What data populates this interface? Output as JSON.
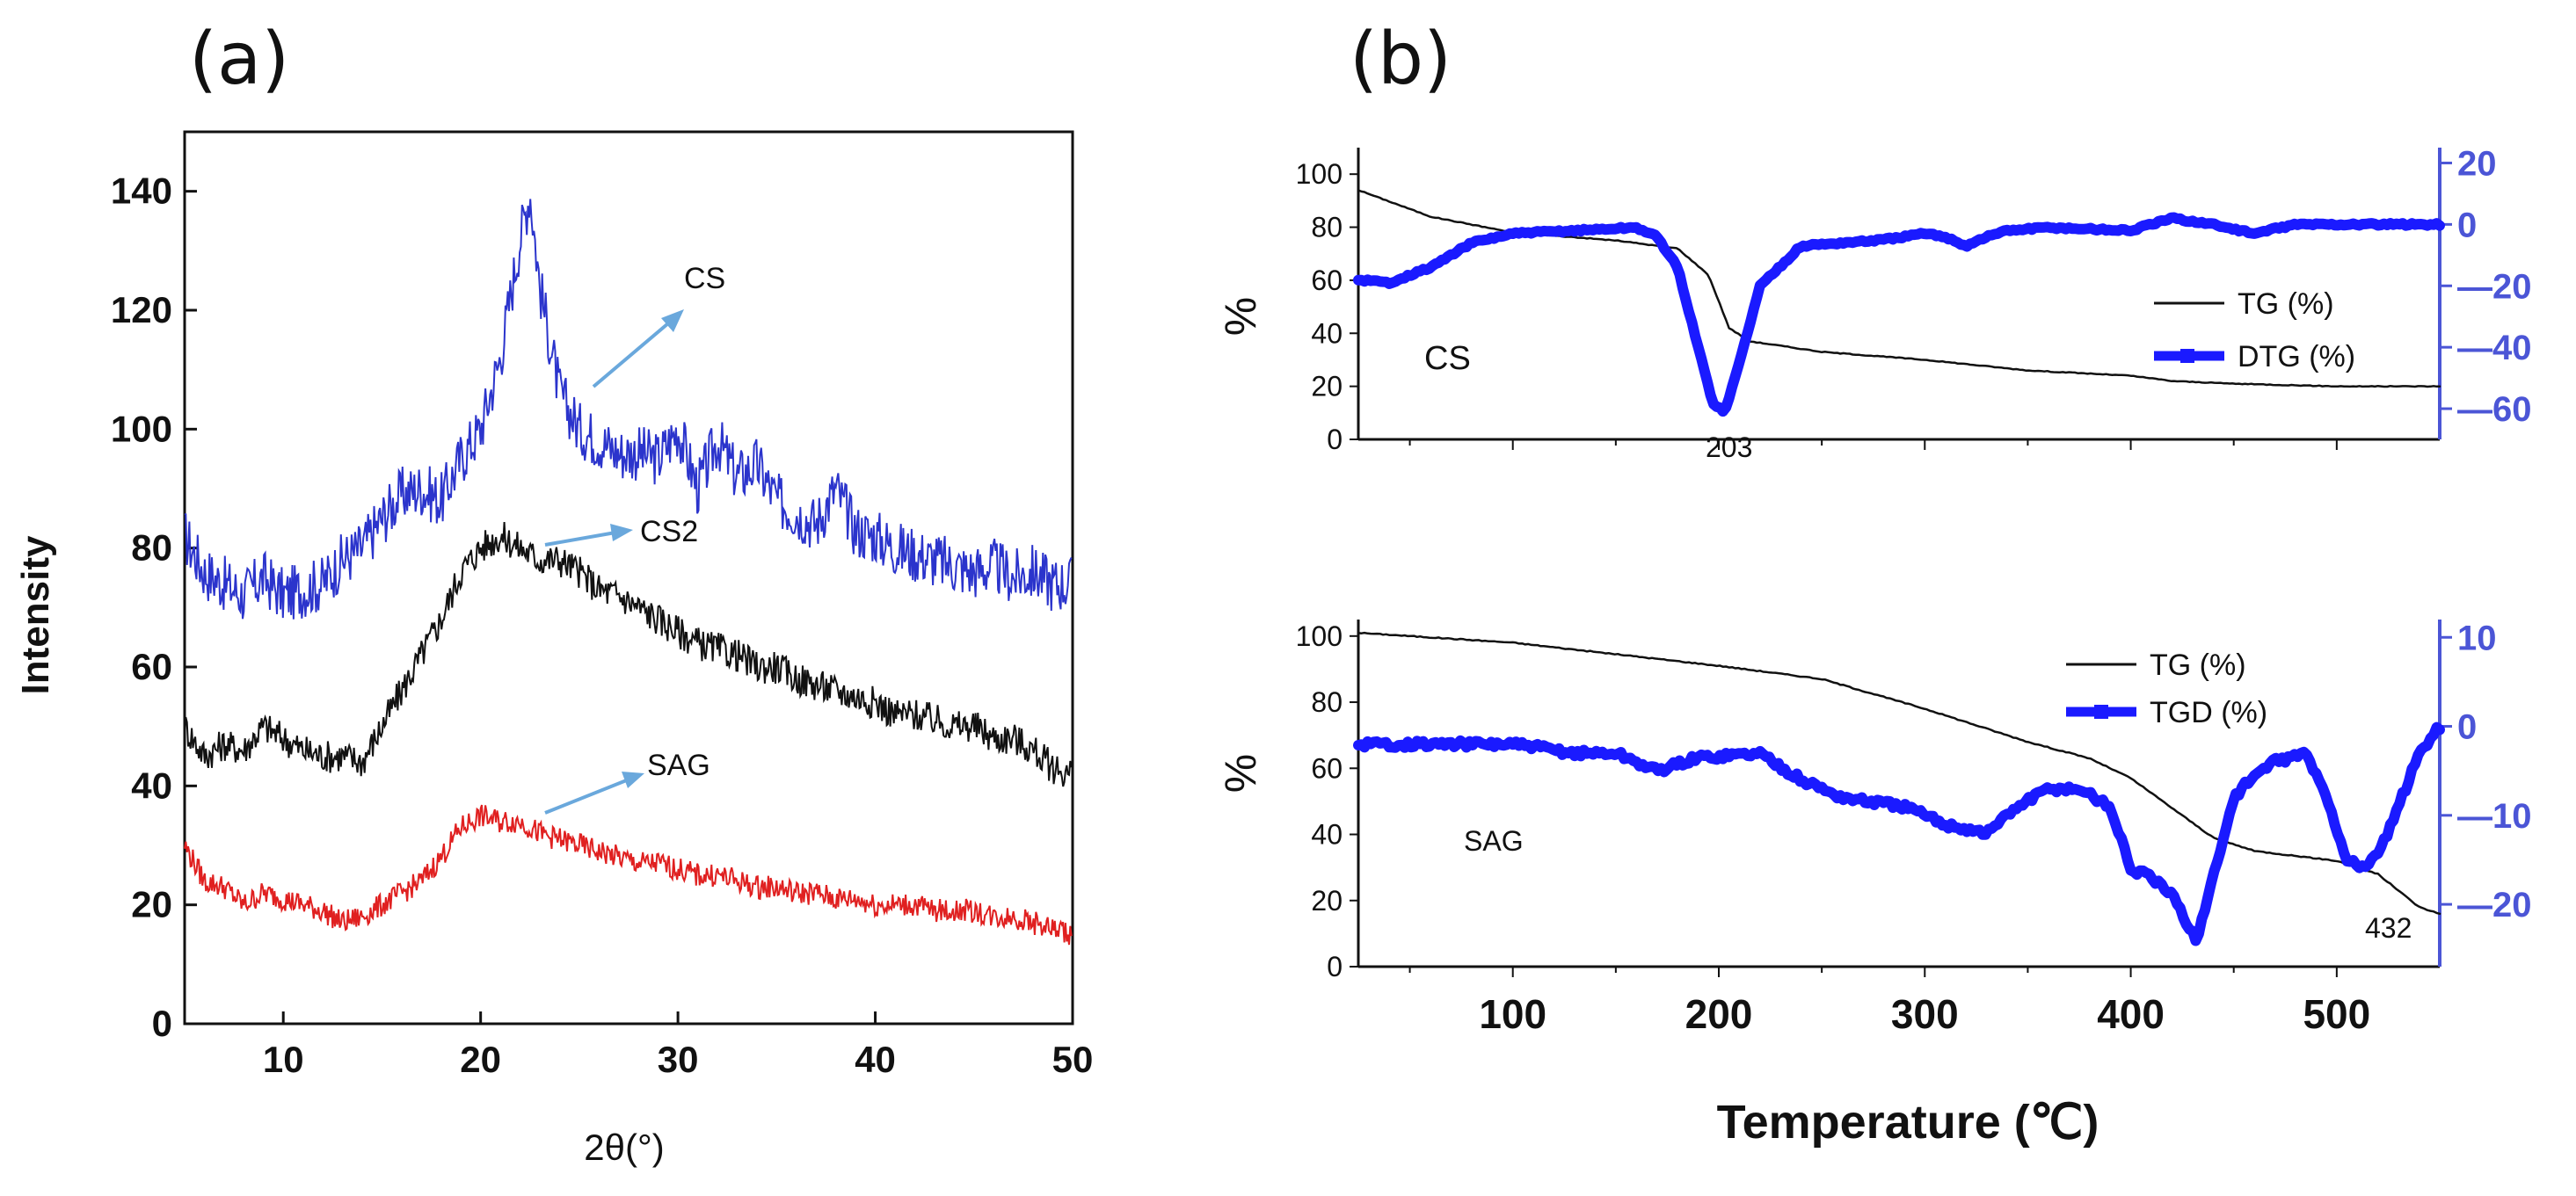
{
  "chart_data": [
    {
      "panel": "(a)",
      "type": "line",
      "title": "",
      "xlabel": "2θ(°)",
      "ylabel": "Intensity",
      "xlim": [
        5,
        50
      ],
      "ylim": [
        0,
        150
      ],
      "xticks": [
        10,
        20,
        30,
        40,
        50
      ],
      "yticks": [
        0,
        20,
        40,
        60,
        80,
        100,
        120,
        140
      ],
      "series": [
        {
          "name": "CS",
          "color": "#2b34cc",
          "x": [
            5,
            6,
            7,
            8,
            9,
            10,
            11,
            12,
            13,
            14,
            15,
            16,
            17,
            18,
            19,
            20,
            21,
            22,
            22.5,
            23,
            24,
            25,
            26,
            27,
            28,
            29,
            30,
            31,
            32,
            33,
            34,
            35,
            36,
            37,
            38,
            39,
            40,
            41,
            42,
            43,
            44,
            45,
            46,
            47,
            48,
            49,
            50
          ],
          "values": [
            82,
            76,
            74,
            72,
            75,
            72,
            73,
            74,
            78,
            80,
            85,
            89,
            90,
            88,
            95,
            100,
            112,
            132,
            140,
            124,
            106,
            100,
            98,
            96,
            96,
            95,
            100,
            90,
            98,
            92,
            94,
            88,
            86,
            84,
            90,
            83,
            82,
            80,
            79,
            78,
            77,
            76,
            77,
            75,
            76,
            74,
            74
          ]
        },
        {
          "name": "CS2",
          "color": "#111111",
          "x": [
            5,
            6,
            7,
            8,
            9,
            10,
            11,
            12,
            13,
            14,
            15,
            16,
            17,
            18,
            19,
            20,
            21,
            22,
            23,
            24,
            25,
            26,
            27,
            28,
            29,
            30,
            31,
            32,
            33,
            34,
            35,
            36,
            37,
            38,
            39,
            40,
            41,
            42,
            43,
            44,
            45,
            46,
            47,
            48,
            49,
            50
          ],
          "values": [
            50,
            45,
            47,
            46,
            50,
            48,
            46,
            45,
            45,
            44,
            50,
            56,
            62,
            68,
            76,
            80,
            82,
            80,
            78,
            78,
            76,
            73,
            72,
            70,
            68,
            66,
            64,
            63,
            62,
            60,
            60,
            58,
            57,
            56,
            55,
            54,
            52,
            52,
            51,
            50,
            50,
            48,
            48,
            46,
            43,
            42
          ]
        },
        {
          "name": "SAG",
          "color": "#e02020",
          "x": [
            5,
            6,
            7,
            8,
            9,
            10,
            11,
            12,
            13,
            14,
            15,
            16,
            17,
            18,
            19,
            20,
            21,
            22,
            23,
            24,
            25,
            26,
            27,
            28,
            29,
            30,
            31,
            32,
            33,
            34,
            35,
            36,
            37,
            38,
            39,
            40,
            41,
            42,
            43,
            44,
            45,
            46,
            47,
            48,
            49,
            50
          ],
          "values": [
            30,
            24,
            23,
            20,
            22,
            21,
            20,
            19,
            17,
            18,
            20,
            22,
            24,
            28,
            33,
            35,
            34,
            34,
            32,
            31,
            30,
            29,
            28,
            27,
            27,
            26,
            25,
            25,
            24,
            23,
            23,
            22,
            22,
            21,
            21,
            20,
            20,
            20,
            19,
            19,
            19,
            18,
            18,
            17,
            16,
            15
          ]
        }
      ],
      "annotations": [
        "CS",
        "CS2",
        "SAG"
      ]
    },
    {
      "panel": "(b)",
      "subplot": "top",
      "type": "line",
      "xlabel": "Temperature (℃)",
      "ylabel": "%",
      "y2label": "",
      "xlim": [
        25,
        550
      ],
      "ylim": [
        0,
        110
      ],
      "y2lim": [
        -70,
        25
      ],
      "yticks": [
        0,
        20,
        40,
        60,
        80,
        100
      ],
      "y2ticks": [
        -60,
        -40,
        -20,
        0,
        20
      ],
      "y2ticklabels": [
        "—60",
        "—40",
        "—20",
        "0",
        "20"
      ],
      "label": "CS",
      "peak_label": "203",
      "legend": [
        "TG  (%)",
        "DTG (%)"
      ],
      "series": [
        {
          "name": "TG  (%)",
          "axis": "left",
          "color": "#111111",
          "x": [
            25,
            60,
            100,
            150,
            180,
            195,
            205,
            215,
            250,
            300,
            350,
            400,
            420,
            450,
            500,
            550
          ],
          "values": [
            94,
            84,
            78,
            75,
            72,
            62,
            42,
            37,
            33,
            30,
            26,
            24,
            22,
            21,
            20,
            20
          ]
        },
        {
          "name": "DTG (%)",
          "axis": "right",
          "color": "#1a1aff",
          "x": [
            25,
            40,
            60,
            80,
            100,
            130,
            160,
            170,
            180,
            190,
            197,
            203,
            210,
            220,
            240,
            280,
            300,
            310,
            320,
            330,
            340,
            360,
            400,
            420,
            440,
            460,
            480,
            500,
            550
          ],
          "values": [
            -18,
            -19,
            -14,
            -6,
            -3,
            -2,
            -1,
            -4,
            -14,
            -40,
            -58,
            -61,
            -45,
            -20,
            -7,
            -5,
            -3,
            -4,
            -7,
            -4,
            -2,
            -1,
            -2,
            2,
            0,
            -3,
            0,
            0,
            0
          ]
        }
      ]
    },
    {
      "panel": "(b)",
      "subplot": "bottom",
      "type": "line",
      "xlabel": "Temperature (℃)",
      "ylabel": "%",
      "xlim": [
        25,
        550
      ],
      "ylim": [
        0,
        105
      ],
      "y2lim": [
        -27,
        12
      ],
      "yticks": [
        0,
        20,
        40,
        60,
        80,
        100
      ],
      "y2ticks": [
        -20,
        -10,
        0,
        10
      ],
      "y2ticklabels": [
        "—20",
        "—10",
        "0",
        "10"
      ],
      "xticks": [
        100,
        200,
        300,
        400,
        500
      ],
      "label": "SAG",
      "peak_label": "432",
      "legend": [
        "TG   (%)",
        "TGD (%)"
      ],
      "series": [
        {
          "name": "TG   (%)",
          "axis": "left",
          "color": "#111111",
          "x": [
            25,
            100,
            200,
            250,
            300,
            350,
            380,
            400,
            420,
            440,
            460,
            500,
            520,
            540,
            550
          ],
          "values": [
            101,
            98,
            91,
            87,
            78,
            68,
            63,
            57,
            48,
            39,
            35,
            32,
            28,
            18,
            16
          ]
        },
        {
          "name": "TGD (%)",
          "axis": "right",
          "color": "#1a1aff",
          "x": [
            25,
            60,
            100,
            130,
            150,
            170,
            190,
            220,
            240,
            260,
            290,
            310,
            330,
            345,
            360,
            375,
            390,
            400,
            410,
            420,
            432,
            440,
            450,
            460,
            470,
            485,
            495,
            505,
            515,
            525,
            540,
            550
          ],
          "values": [
            -2,
            -2,
            -2,
            -3,
            -3,
            -5,
            -3.5,
            -3,
            -6,
            -8,
            -9,
            -11,
            -12,
            -9,
            -7,
            -7,
            -9,
            -16,
            -17,
            -19,
            -24,
            -17,
            -8,
            -5.5,
            -4,
            -3,
            -8,
            -15,
            -16,
            -12,
            -3,
            0
          ]
        }
      ]
    }
  ],
  "texts": {
    "panel_a": "(a)",
    "panel_b": "(b)",
    "a_ylabel": "Intensity",
    "a_xlabel": "2θ(°)",
    "b_xlabel": "Temperature (℃)",
    "b_ylabel_top": "%",
    "b_ylabel_bottom": "%",
    "b_top_label": "CS",
    "b_bottom_label": "SAG",
    "b_top_peak": "203",
    "b_bottom_peak": "432",
    "b_top_legend_tg": "TG  (%)",
    "b_top_legend_dtg": "DTG (%)",
    "b_bottom_legend_tg": "TG   (%)",
    "b_bottom_legend_tgd": "TGD (%)",
    "a_ann_cs": "CS",
    "a_ann_cs2": "CS2",
    "a_ann_sag": "SAG"
  },
  "colors": {
    "arrow": "#6aa8dc",
    "blue_axis": "#4b55d6"
  }
}
